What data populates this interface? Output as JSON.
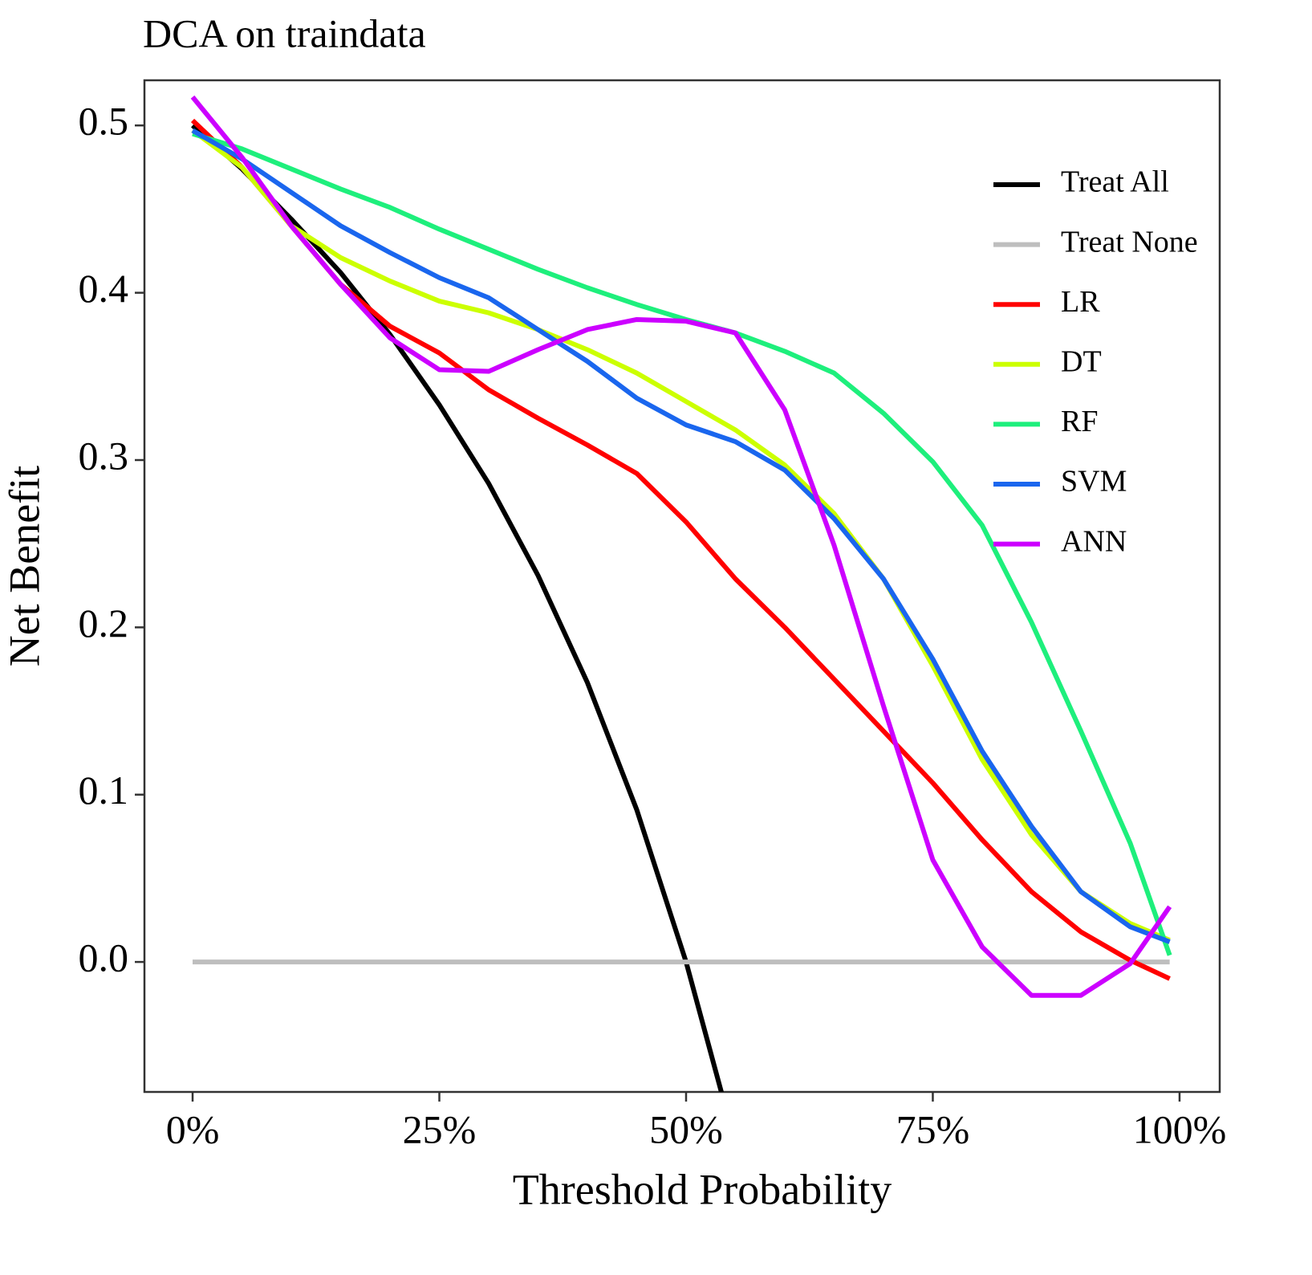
{
  "chart_data": {
    "type": "line",
    "title": "DCA on traindata",
    "x_label": "Threshold Probability",
    "y_label": "Net Benefit",
    "xlim": [
      -4.88,
      104.07
    ],
    "ylim": [
      -0.0777,
      0.527
    ],
    "xticks": [
      {
        "value": 0,
        "label": "0%"
      },
      {
        "value": 25,
        "label": "25%"
      },
      {
        "value": 50,
        "label": "50%"
      },
      {
        "value": 75,
        "label": "75%"
      },
      {
        "value": 100,
        "label": "100%"
      }
    ],
    "yticks": [
      {
        "value": 0,
        "label": "0.0"
      },
      0.1,
      0.2,
      0.3,
      0.4,
      0.5
    ],
    "legend": "top-right",
    "series": [
      {
        "name": "Treat All",
        "color": "#000000",
        "x": [
          0,
          5,
          10,
          15,
          20,
          25,
          30,
          35,
          40,
          45,
          50,
          54
        ],
        "values": [
          0.5,
          0.474,
          0.444,
          0.412,
          0.375,
          0.333,
          0.286,
          0.231,
          0.167,
          0.091,
          0,
          -0.087
        ]
      },
      {
        "name": "Treat None",
        "color": "#bebebe",
        "x": [
          0,
          99
        ],
        "values": [
          0,
          0
        ]
      },
      {
        "name": "LR",
        "color": "#ff0000",
        "x": [
          0,
          5,
          10,
          15,
          20,
          25,
          30,
          35,
          40,
          45,
          50,
          55,
          60,
          65,
          70,
          75,
          80,
          85,
          90,
          95,
          99
        ],
        "values": [
          0.503,
          0.475,
          0.44,
          0.405,
          0.38,
          0.364,
          0.342,
          0.325,
          0.309,
          0.292,
          0.263,
          0.229,
          0.2,
          0.169,
          0.138,
          0.107,
          0.073,
          0.042,
          0.018,
          0.001,
          -0.01
        ]
      },
      {
        "name": "DT",
        "color": "#ccff00",
        "x": [
          0,
          5,
          10,
          15,
          20,
          25,
          30,
          35,
          40,
          45,
          50,
          55,
          60,
          65,
          70,
          75,
          80,
          85,
          90,
          95,
          99
        ],
        "values": [
          0.497,
          0.475,
          0.44,
          0.421,
          0.407,
          0.395,
          0.388,
          0.378,
          0.366,
          0.352,
          0.335,
          0.318,
          0.297,
          0.268,
          0.229,
          0.177,
          0.121,
          0.076,
          0.042,
          0.023,
          0.013
        ]
      },
      {
        "name": "RF",
        "color": "#1eef7c",
        "x": [
          0,
          5,
          10,
          15,
          20,
          25,
          30,
          35,
          40,
          45,
          50,
          55,
          60,
          65,
          70,
          75,
          80,
          85,
          90,
          95,
          99
        ],
        "values": [
          0.495,
          0.486,
          0.474,
          0.462,
          0.451,
          0.438,
          0.426,
          0.414,
          0.403,
          0.393,
          0.384,
          0.376,
          0.365,
          0.352,
          0.328,
          0.299,
          0.261,
          0.203,
          0.138,
          0.071,
          0.004
        ]
      },
      {
        "name": "SVM",
        "color": "#1a66ee",
        "x": [
          0,
          5,
          10,
          15,
          20,
          25,
          30,
          35,
          40,
          45,
          50,
          55,
          60,
          65,
          70,
          75,
          80,
          85,
          90,
          95,
          99
        ],
        "values": [
          0.497,
          0.48,
          0.46,
          0.44,
          0.424,
          0.409,
          0.397,
          0.378,
          0.359,
          0.337,
          0.321,
          0.311,
          0.294,
          0.265,
          0.229,
          0.181,
          0.126,
          0.081,
          0.042,
          0.021,
          0.012
        ]
      },
      {
        "name": "ANN",
        "color": "#cc00ff",
        "x": [
          0,
          5,
          10,
          15,
          20,
          25,
          30,
          35,
          40,
          45,
          50,
          55,
          60,
          65,
          70,
          75,
          80,
          85,
          90,
          95,
          99
        ],
        "values": [
          0.517,
          0.481,
          0.44,
          0.405,
          0.373,
          0.354,
          0.353,
          0.366,
          0.378,
          0.384,
          0.383,
          0.376,
          0.33,
          0.249,
          0.153,
          0.061,
          0.009,
          -0.02,
          -0.02,
          -0.001,
          0.033
        ]
      }
    ]
  }
}
